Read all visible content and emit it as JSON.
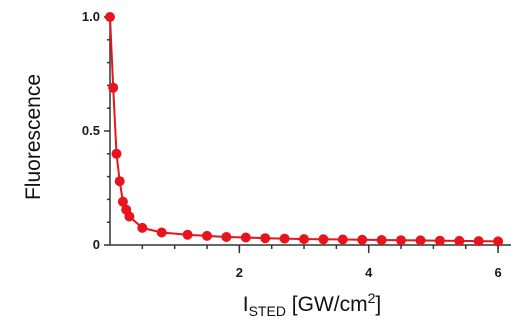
{
  "chart_data": {
    "type": "line",
    "title": "",
    "ylabel": "Fluorescence",
    "xlabel": {
      "main": "I",
      "subscript": "STED",
      "unit_prefix": " [GW/cm",
      "unit_superscript": "2",
      "unit_suffix": "]"
    },
    "xlim": [
      0,
      6.2
    ],
    "ylim": [
      0,
      1.0
    ],
    "xticks": [
      {
        "value": 2,
        "label": "2"
      },
      {
        "value": 4,
        "label": "4"
      },
      {
        "value": 6,
        "label": "6"
      }
    ],
    "yticks": [
      {
        "value": 0,
        "label": "0"
      },
      {
        "value": 0.5,
        "label": "0.5"
      },
      {
        "value": 1.0,
        "label": "1.0"
      }
    ],
    "grid": false,
    "legend": "none",
    "series": [
      {
        "color": "#e8141c",
        "marker": "circle",
        "x": [
          0.0,
          0.05,
          0.1,
          0.15,
          0.2,
          0.25,
          0.3,
          0.5,
          0.8,
          1.2,
          1.5,
          1.8,
          2.1,
          2.4,
          2.7,
          3.0,
          3.3,
          3.6,
          3.9,
          4.2,
          4.5,
          4.8,
          5.1,
          5.4,
          5.7,
          6.0
        ],
        "y": [
          1.0,
          0.69,
          0.4,
          0.28,
          0.19,
          0.155,
          0.125,
          0.075,
          0.055,
          0.045,
          0.04,
          0.035,
          0.033,
          0.03,
          0.028,
          0.026,
          0.025,
          0.024,
          0.023,
          0.022,
          0.021,
          0.02,
          0.019,
          0.018,
          0.017,
          0.016
        ]
      }
    ]
  }
}
